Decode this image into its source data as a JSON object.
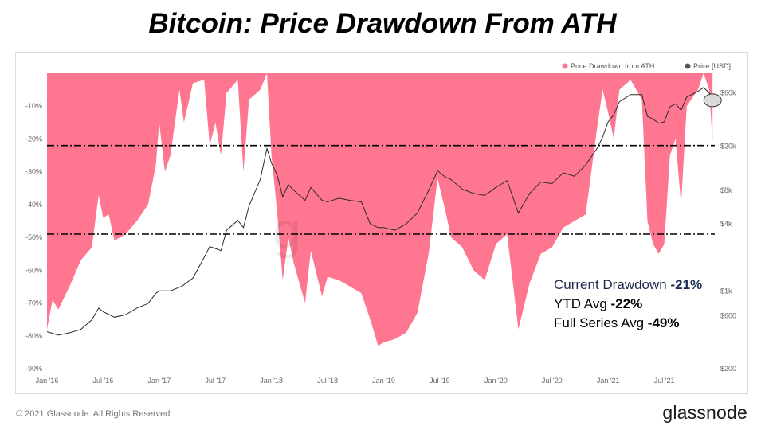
{
  "title": "Bitcoin: Price Drawdown From ATH",
  "legend": {
    "drawdown": "Price Drawdown from ATH",
    "price": "Price [USD]",
    "drawdown_color": "#ff7690",
    "price_color": "#555555"
  },
  "stats": {
    "current_label": "Current Drawdown ",
    "current_value": "-21%",
    "ytd_label": "YTD Avg ",
    "ytd_value": "-22%",
    "full_label": "Full Series Avg ",
    "full_value": "-49%"
  },
  "footer": {
    "copyright": "© 2021 Glassnode. All Rights Reserved.",
    "brand": "glassnode"
  },
  "chart_data": {
    "type": "area",
    "title": "Bitcoin: Price Drawdown From ATH",
    "x_range": [
      2016.0,
      2021.95
    ],
    "x_ticks": [
      {
        "t": 2016.0,
        "label": "Jan '16"
      },
      {
        "t": 2016.5,
        "label": "Jul '16"
      },
      {
        "t": 2017.0,
        "label": "Jan '17"
      },
      {
        "t": 2017.5,
        "label": "Jul '17"
      },
      {
        "t": 2018.0,
        "label": "Jan '18"
      },
      {
        "t": 2018.5,
        "label": "Jul '18"
      },
      {
        "t": 2019.0,
        "label": "Jan '19"
      },
      {
        "t": 2019.5,
        "label": "Jul '19"
      },
      {
        "t": 2020.0,
        "label": "Jan '20"
      },
      {
        "t": 2020.5,
        "label": "Jul '20"
      },
      {
        "t": 2021.0,
        "label": "Jan '21"
      },
      {
        "t": 2021.5,
        "label": "Jul '21"
      }
    ],
    "y_left": {
      "range": [
        -90,
        0
      ],
      "ticks": [
        {
          "v": -10,
          "label": "-10%"
        },
        {
          "v": -20,
          "label": "-20%"
        },
        {
          "v": -30,
          "label": "-30%"
        },
        {
          "v": -40,
          "label": "-40%"
        },
        {
          "v": -50,
          "label": "-50%"
        },
        {
          "v": -60,
          "label": "-60%"
        },
        {
          "v": -70,
          "label": "-70%"
        },
        {
          "v": -80,
          "label": "-80%"
        },
        {
          "v": -90,
          "label": "-90%"
        }
      ]
    },
    "y_right": {
      "scale": "log",
      "range": [
        200,
        90000
      ],
      "ticks": [
        {
          "v": 200,
          "label": "$200"
        },
        {
          "v": 600,
          "label": "$600"
        },
        {
          "v": 1000,
          "label": "$1k"
        },
        {
          "v": 4000,
          "label": "$4k"
        },
        {
          "v": 8000,
          "label": "$8k"
        },
        {
          "v": 20000,
          "label": "$20k"
        },
        {
          "v": 60000,
          "label": "$60k"
        }
      ]
    },
    "reference_lines": [
      {
        "name": "ytd-avg-line",
        "value": -22
      },
      {
        "name": "full-series-avg-line",
        "value": -49
      }
    ],
    "series": [
      {
        "name": "Price Drawdown from ATH",
        "unit": "%",
        "points": [
          [
            2016.0,
            -78
          ],
          [
            2016.05,
            -69
          ],
          [
            2016.1,
            -72
          ],
          [
            2016.2,
            -65
          ],
          [
            2016.3,
            -57
          ],
          [
            2016.4,
            -53
          ],
          [
            2016.46,
            -37
          ],
          [
            2016.5,
            -44
          ],
          [
            2016.55,
            -43
          ],
          [
            2016.6,
            -51
          ],
          [
            2016.7,
            -49
          ],
          [
            2016.8,
            -45
          ],
          [
            2016.9,
            -40
          ],
          [
            2016.97,
            -28
          ],
          [
            2017.0,
            -15
          ],
          [
            2017.05,
            -30
          ],
          [
            2017.1,
            -25
          ],
          [
            2017.18,
            -5
          ],
          [
            2017.22,
            -15
          ],
          [
            2017.3,
            -3
          ],
          [
            2017.4,
            -2
          ],
          [
            2017.45,
            -22
          ],
          [
            2017.5,
            -15
          ],
          [
            2017.55,
            -25
          ],
          [
            2017.6,
            -6
          ],
          [
            2017.7,
            -2
          ],
          [
            2017.75,
            -30
          ],
          [
            2017.8,
            -8
          ],
          [
            2017.9,
            -5
          ],
          [
            2017.96,
            0
          ],
          [
            2018.0,
            -25
          ],
          [
            2018.05,
            -42
          ],
          [
            2018.1,
            -63
          ],
          [
            2018.15,
            -50
          ],
          [
            2018.2,
            -58
          ],
          [
            2018.3,
            -70
          ],
          [
            2018.35,
            -54
          ],
          [
            2018.45,
            -68
          ],
          [
            2018.5,
            -62
          ],
          [
            2018.6,
            -63
          ],
          [
            2018.7,
            -65
          ],
          [
            2018.8,
            -67
          ],
          [
            2018.88,
            -75
          ],
          [
            2018.95,
            -83
          ],
          [
            2019.0,
            -82
          ],
          [
            2019.1,
            -81
          ],
          [
            2019.2,
            -79
          ],
          [
            2019.3,
            -73
          ],
          [
            2019.4,
            -55
          ],
          [
            2019.48,
            -32
          ],
          [
            2019.55,
            -42
          ],
          [
            2019.6,
            -50
          ],
          [
            2019.7,
            -53
          ],
          [
            2019.8,
            -60
          ],
          [
            2019.9,
            -63
          ],
          [
            2020.0,
            -52
          ],
          [
            2020.1,
            -49
          ],
          [
            2020.2,
            -78
          ],
          [
            2020.3,
            -64
          ],
          [
            2020.4,
            -55
          ],
          [
            2020.5,
            -53
          ],
          [
            2020.6,
            -47
          ],
          [
            2020.7,
            -45
          ],
          [
            2020.8,
            -43
          ],
          [
            2020.9,
            -17
          ],
          [
            2020.95,
            -5
          ],
          [
            2021.0,
            -12
          ],
          [
            2021.05,
            -20
          ],
          [
            2021.1,
            -5
          ],
          [
            2021.2,
            -2
          ],
          [
            2021.3,
            -8
          ],
          [
            2021.35,
            -45
          ],
          [
            2021.4,
            -52
          ],
          [
            2021.45,
            -55
          ],
          [
            2021.5,
            -52
          ],
          [
            2021.55,
            -25
          ],
          [
            2021.6,
            -20
          ],
          [
            2021.65,
            -40
          ],
          [
            2021.7,
            -10
          ],
          [
            2021.8,
            -5
          ],
          [
            2021.85,
            0
          ],
          [
            2021.9,
            -5
          ],
          [
            2021.93,
            -21
          ]
        ]
      },
      {
        "name": "Price [USD]",
        "unit": "USD",
        "points": [
          [
            2016.0,
            430
          ],
          [
            2016.1,
            400
          ],
          [
            2016.2,
            420
          ],
          [
            2016.3,
            450
          ],
          [
            2016.4,
            550
          ],
          [
            2016.46,
            700
          ],
          [
            2016.5,
            650
          ],
          [
            2016.6,
            580
          ],
          [
            2016.7,
            610
          ],
          [
            2016.8,
            700
          ],
          [
            2016.9,
            770
          ],
          [
            2016.97,
            950
          ],
          [
            2017.0,
            1000
          ],
          [
            2017.1,
            1000
          ],
          [
            2017.2,
            1100
          ],
          [
            2017.3,
            1300
          ],
          [
            2017.4,
            2000
          ],
          [
            2017.45,
            2500
          ],
          [
            2017.5,
            2400
          ],
          [
            2017.55,
            2300
          ],
          [
            2017.6,
            3500
          ],
          [
            2017.7,
            4300
          ],
          [
            2017.75,
            3700
          ],
          [
            2017.8,
            5800
          ],
          [
            2017.9,
            10000
          ],
          [
            2017.96,
            19000
          ],
          [
            2018.0,
            14000
          ],
          [
            2018.05,
            11000
          ],
          [
            2018.1,
            7000
          ],
          [
            2018.15,
            9000
          ],
          [
            2018.2,
            8000
          ],
          [
            2018.3,
            6500
          ],
          [
            2018.35,
            8500
          ],
          [
            2018.45,
            6500
          ],
          [
            2018.5,
            6300
          ],
          [
            2018.6,
            6800
          ],
          [
            2018.7,
            6500
          ],
          [
            2018.8,
            6300
          ],
          [
            2018.88,
            4000
          ],
          [
            2018.95,
            3700
          ],
          [
            2019.0,
            3700
          ],
          [
            2019.1,
            3500
          ],
          [
            2019.2,
            4000
          ],
          [
            2019.3,
            5000
          ],
          [
            2019.4,
            8000
          ],
          [
            2019.48,
            12000
          ],
          [
            2019.55,
            10500
          ],
          [
            2019.6,
            10000
          ],
          [
            2019.7,
            8200
          ],
          [
            2019.8,
            7500
          ],
          [
            2019.9,
            7200
          ],
          [
            2020.0,
            8500
          ],
          [
            2020.1,
            9800
          ],
          [
            2020.2,
            5000
          ],
          [
            2020.3,
            7500
          ],
          [
            2020.4,
            9500
          ],
          [
            2020.5,
            9200
          ],
          [
            2020.6,
            11500
          ],
          [
            2020.7,
            10700
          ],
          [
            2020.8,
            13500
          ],
          [
            2020.9,
            19000
          ],
          [
            2020.95,
            24000
          ],
          [
            2021.0,
            33000
          ],
          [
            2021.05,
            38000
          ],
          [
            2021.1,
            50000
          ],
          [
            2021.2,
            58000
          ],
          [
            2021.3,
            58000
          ],
          [
            2021.35,
            37000
          ],
          [
            2021.4,
            35000
          ],
          [
            2021.45,
            32000
          ],
          [
            2021.5,
            33000
          ],
          [
            2021.55,
            45000
          ],
          [
            2021.6,
            48000
          ],
          [
            2021.65,
            42000
          ],
          [
            2021.7,
            55000
          ],
          [
            2021.8,
            62000
          ],
          [
            2021.85,
            67000
          ],
          [
            2021.9,
            60000
          ],
          [
            2021.93,
            49000
          ]
        ]
      }
    ]
  }
}
